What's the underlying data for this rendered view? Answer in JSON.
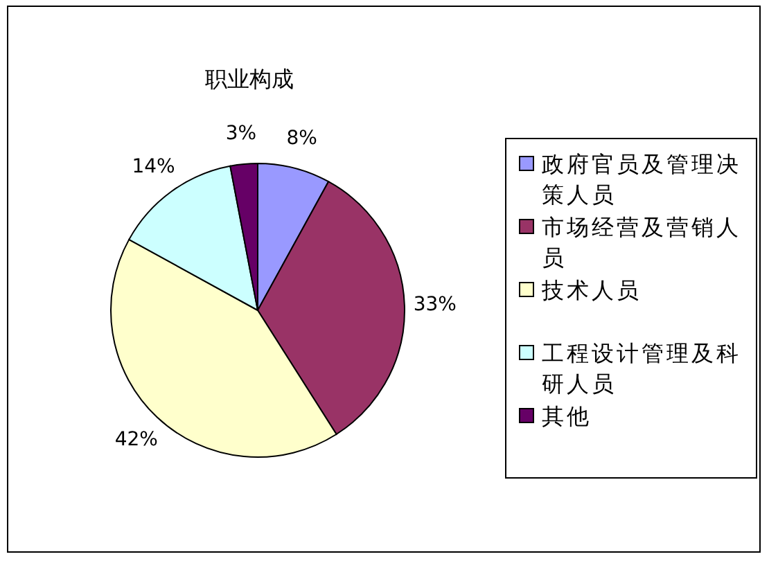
{
  "chart_data": {
    "type": "pie",
    "title": "职业构成",
    "categories": [
      "政府官员及管理决策人员",
      "市场经营及营销人员",
      "技术人员",
      "工程设计管理及科研人员",
      "其他"
    ],
    "values": [
      8,
      33,
      42,
      14,
      3
    ],
    "colors": [
      "#9999ff",
      "#993366",
      "#ffffcc",
      "#ccffff",
      "#660066"
    ],
    "value_labels": [
      "8%",
      "33%",
      "42%",
      "14%",
      "3%"
    ],
    "legend": "right"
  }
}
